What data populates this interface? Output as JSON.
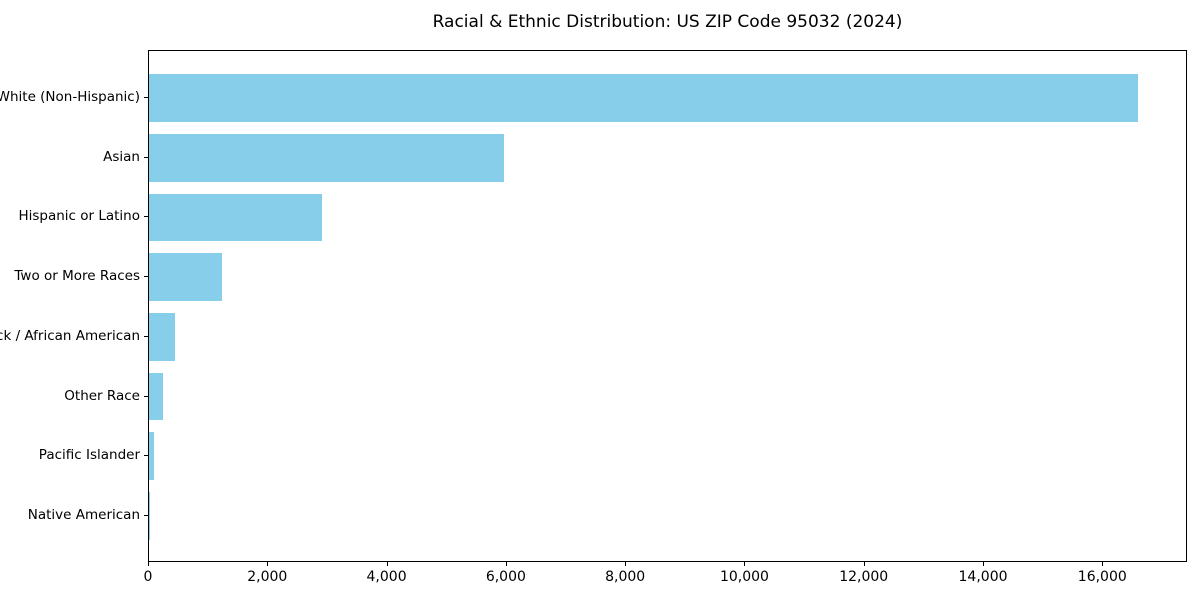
{
  "chart_data": {
    "type": "bar",
    "orientation": "horizontal",
    "title": "Racial & Ethnic Distribution: US ZIP Code 95032 (2024)",
    "xlabel": "",
    "ylabel": "",
    "categories": [
      "White (Non-Hispanic)",
      "Asian",
      "Hispanic or Latino",
      "Two or More Races",
      "Black / African American",
      "Other Race",
      "Pacific Islander",
      "Native American"
    ],
    "values": [
      16590,
      5960,
      2900,
      1225,
      440,
      235,
      85,
      20
    ],
    "xlim": [
      0,
      17420
    ],
    "xticks": [
      {
        "value": 0,
        "label": "0"
      },
      {
        "value": 2000,
        "label": "2,000"
      },
      {
        "value": 4000,
        "label": "4,000"
      },
      {
        "value": 6000,
        "label": "6,000"
      },
      {
        "value": 8000,
        "label": "8,000"
      },
      {
        "value": 10000,
        "label": "10,000"
      },
      {
        "value": 12000,
        "label": "12,000"
      },
      {
        "value": 14000,
        "label": "14,000"
      },
      {
        "value": 16000,
        "label": "16,000"
      }
    ],
    "bar_color": "#87CEEB",
    "frame_color": "#000000",
    "background_color": "#ffffff",
    "grid": false,
    "legend": null
  }
}
